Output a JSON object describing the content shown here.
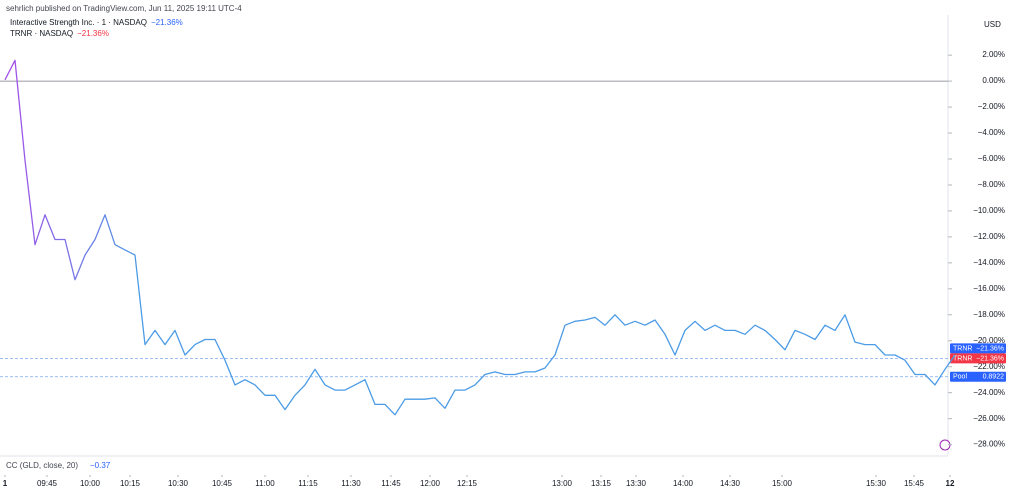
{
  "chart_data": {
    "type": "line",
    "publisher": "sehrlich published on TradingView.com, Jun 11, 2025 19:11 UTC-4",
    "legend": [
      {
        "name": "Interactive Strength Inc. · 1 · NASDAQ",
        "value_label": "−21.36%",
        "color": "#2962ff"
      },
      {
        "name": "TRNR · NASDAQ",
        "value_label": "−21.36%",
        "color": "#f23645"
      }
    ],
    "currency": "USD",
    "indicator": {
      "name": "CC (GLD, close, 20)",
      "value_label": "−0.37"
    },
    "series": [
      {
        "name": "TRNR",
        "color": "#4b9be6",
        "start_color": "#a64ee8",
        "values": [
          0.1,
          1.6,
          -6.1,
          -12.6,
          -10.3,
          -12.2,
          -12.2,
          -15.3,
          -13.4,
          -12.2,
          -10.3,
          -12.6,
          -13.0,
          -13.4,
          -20.3,
          -19.2,
          -20.3,
          -19.2,
          -21.1,
          -20.3,
          -19.9,
          -19.9,
          -21.5,
          -23.4,
          -23.0,
          -23.4,
          -24.2,
          -24.2,
          -25.3,
          -24.2,
          -23.4,
          -22.2,
          -23.4,
          -23.8,
          -23.8,
          -23.4,
          -23.0,
          -24.9,
          -24.9,
          -25.7,
          -24.5,
          -24.5,
          -24.5,
          -24.4,
          -25.2,
          -23.8,
          -23.8,
          -23.4,
          -22.6,
          -22.4,
          -22.6,
          -22.6,
          -22.4,
          -22.4,
          -22.1,
          -21.1,
          -18.8,
          -18.5,
          -18.4,
          -18.2,
          -18.8,
          -18.0,
          -18.8,
          -18.5,
          -18.8,
          -18.4,
          -19.5,
          -21.1,
          -19.2,
          -18.5,
          -19.2,
          -18.8,
          -19.2,
          -19.2,
          -19.5,
          -18.8,
          -19.2,
          -19.9,
          -20.7,
          -19.2,
          -19.5,
          -19.9,
          -18.8,
          -19.2,
          -18.0,
          -20.1,
          -20.3,
          -20.3,
          -21.1,
          -21.1,
          -21.5,
          -22.6,
          -22.6,
          -23.4,
          -22.2,
          -21.1
        ]
      }
    ],
    "price_lines": [
      {
        "name": "TRNR",
        "label": "−21.36%",
        "value": -21.36,
        "color": "#2962ff"
      },
      {
        "name": "TRNR",
        "label": "−21.36%",
        "value": -21.36,
        "color": "#f23645"
      },
      {
        "name": "Pool",
        "label": "0.8922",
        "value": -22.77,
        "color": "#2962ff"
      }
    ],
    "xlim": [
      0,
      95
    ],
    "xticks": [
      {
        "value": 0,
        "label": "1"
      },
      {
        "value": 4.2,
        "label": "09:45"
      },
      {
        "value": 8.5,
        "label": "10:00"
      },
      {
        "value": 12.5,
        "label": "10:15"
      },
      {
        "value": 17.3,
        "label": "10:30"
      },
      {
        "value": 21.7,
        "label": "10:45"
      },
      {
        "value": 26,
        "label": "11:00"
      },
      {
        "value": 30.3,
        "label": "11:15"
      },
      {
        "value": 34.6,
        "label": "11:30"
      },
      {
        "value": 38.6,
        "label": "11:45"
      },
      {
        "value": 42.5,
        "label": "12:00"
      },
      {
        "value": 46.2,
        "label": "12:15"
      },
      {
        "value": 55.7,
        "label": "13:00"
      },
      {
        "value": 59.6,
        "label": "13:15"
      },
      {
        "value": 63.1,
        "label": "13:30"
      },
      {
        "value": 67.8,
        "label": "14:00"
      },
      {
        "value": 72.5,
        "label": "14:30"
      },
      {
        "value": 77.7,
        "label": "15:00"
      },
      {
        "value": 87.1,
        "label": "15:30"
      },
      {
        "value": 90.9,
        "label": "15:45"
      },
      {
        "value": 94.5,
        "label": "12"
      }
    ],
    "ylim": [
      -28.8,
      5.4
    ],
    "yticks": [
      {
        "value": 2,
        "label": "2.00%"
      },
      {
        "value": 0,
        "label": "0.00%"
      },
      {
        "value": -2,
        "label": "−2.00%"
      },
      {
        "value": -4,
        "label": "−4.00%"
      },
      {
        "value": -6,
        "label": "−6.00%"
      },
      {
        "value": -8,
        "label": "−8.00%"
      },
      {
        "value": -10,
        "label": "−10.00%"
      },
      {
        "value": -12,
        "label": "−12.00%"
      },
      {
        "value": -14,
        "label": "−14.00%"
      },
      {
        "value": -16,
        "label": "−16.00%"
      },
      {
        "value": -18,
        "label": "−18.00%"
      },
      {
        "value": -20,
        "label": "−20.00%"
      },
      {
        "value": -22,
        "label": "−22.00%"
      },
      {
        "value": -24,
        "label": "−24.00%"
      },
      {
        "value": -26,
        "label": "−26.00%"
      },
      {
        "value": -28,
        "label": "−28.00%"
      }
    ],
    "zero_line": true
  }
}
